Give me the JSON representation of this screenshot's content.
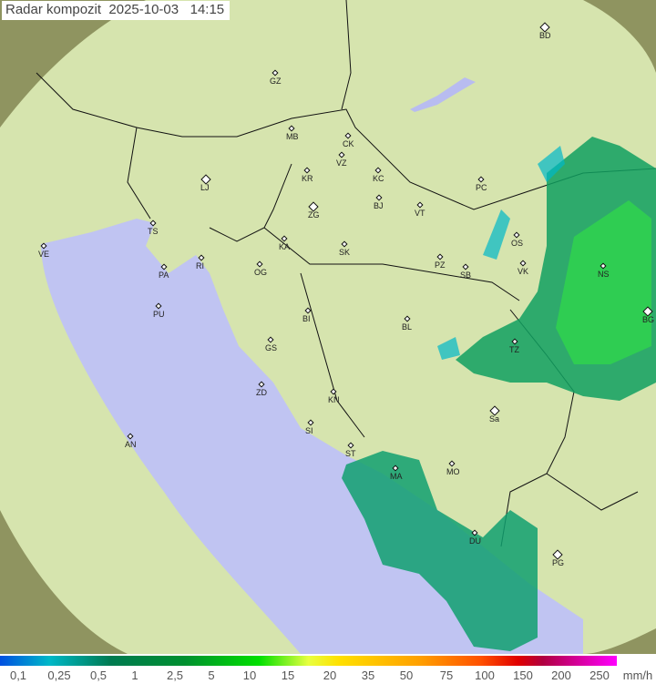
{
  "title": "Radar kompozit  2025-10-03   14:15",
  "legend": {
    "labels": [
      "0,1",
      "0,25",
      "0,5",
      "1",
      "2,5",
      "5",
      "10",
      "15",
      "20",
      "35",
      "50",
      "75",
      "100",
      "150",
      "200",
      "250"
    ],
    "unit": "mm/h"
  },
  "colors": {
    "land": "#d8e6b0",
    "sea": "#c0c4f0",
    "outside": "#8f9460",
    "rain_light": "#00b0c0",
    "rain_mid": "#10a060",
    "rain_heavy": "#20d040"
  },
  "cities": [
    {
      "code": "BD",
      "capital": true
    },
    {
      "code": "GZ"
    },
    {
      "code": "MB"
    },
    {
      "code": "CK"
    },
    {
      "code": "VZ"
    },
    {
      "code": "KR"
    },
    {
      "code": "KC"
    },
    {
      "code": "PC"
    },
    {
      "code": "LJ",
      "capital": true
    },
    {
      "code": "BJ"
    },
    {
      "code": "VT"
    },
    {
      "code": "ZG",
      "capital": true
    },
    {
      "code": "TS"
    },
    {
      "code": "VE"
    },
    {
      "code": "KA"
    },
    {
      "code": "SK"
    },
    {
      "code": "OS"
    },
    {
      "code": "RI"
    },
    {
      "code": "PA"
    },
    {
      "code": "OG"
    },
    {
      "code": "PZ"
    },
    {
      "code": "SB"
    },
    {
      "code": "VK"
    },
    {
      "code": "NS"
    },
    {
      "code": "PU"
    },
    {
      "code": "BI"
    },
    {
      "code": "BL"
    },
    {
      "code": "BG",
      "capital": true
    },
    {
      "code": "TZ"
    },
    {
      "code": "GS"
    },
    {
      "code": "ZD"
    },
    {
      "code": "KN"
    },
    {
      "code": "Sa",
      "capital": true
    },
    {
      "code": "SI"
    },
    {
      "code": "AN"
    },
    {
      "code": "ST"
    },
    {
      "code": "MO"
    },
    {
      "code": "MA"
    },
    {
      "code": "DU"
    },
    {
      "code": "PG",
      "capital": true
    }
  ]
}
